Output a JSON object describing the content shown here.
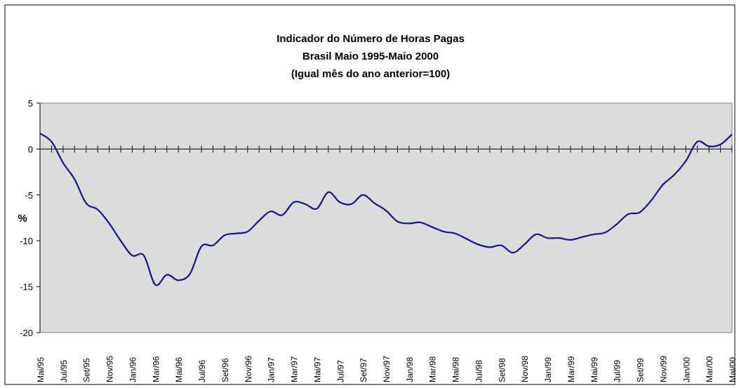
{
  "chart_data": {
    "type": "line",
    "title_lines": [
      "Indicador do Número de Horas Pagas",
      "Brasil Maio 1995-Maio 2000",
      "(Igual mês do ano anterior=100)"
    ],
    "ylabel": "%",
    "categories": [
      "Mai/95",
      null,
      "Jul/95",
      null,
      "Set/95",
      null,
      "Nov/95",
      null,
      "Jan/96",
      null,
      "Mar/96",
      null,
      "Mai/96",
      null,
      "Jul/96",
      null,
      "Set/96",
      null,
      "Nov/96",
      null,
      "Jan/97",
      null,
      "Mar/97",
      null,
      "Mai/97",
      null,
      "Jul/97",
      null,
      "Set/97",
      null,
      "Nov/97",
      null,
      "Jan/98",
      null,
      "Mar/98",
      null,
      "Mai/98",
      null,
      "Jul/98",
      null,
      "Set/98",
      null,
      "Nov/98",
      null,
      "Jan/99",
      null,
      "Mar/99",
      null,
      "Mai/99",
      null,
      "Jul/99",
      null,
      "Set/99",
      null,
      "Nov/99",
      null,
      "Jan/00",
      null,
      "Mar/00",
      null,
      "Mai/00"
    ],
    "values": [
      1.7,
      0.8,
      -1.5,
      -3.3,
      -5.9,
      -6.6,
      -8.1,
      -10.0,
      -11.6,
      -11.6,
      -14.8,
      -13.7,
      -14.3,
      -13.6,
      -10.6,
      -10.5,
      -9.4,
      -9.2,
      -9.0,
      -7.8,
      -6.8,
      -7.2,
      -5.8,
      -6.0,
      -6.5,
      -4.7,
      -5.8,
      -6.0,
      -5.0,
      -5.9,
      -6.7,
      -7.9,
      -8.1,
      -8.0,
      -8.5,
      -9.0,
      -9.2,
      -9.8,
      -10.4,
      -10.7,
      -10.5,
      -11.3,
      -10.4,
      -9.3,
      -9.7,
      -9.7,
      -9.9,
      -9.6,
      -9.3,
      -9.1,
      -8.2,
      -7.1,
      -6.9,
      -5.6,
      -3.9,
      -2.8,
      -1.3,
      0.8,
      0.3,
      0.5,
      1.6
    ],
    "color": "#14148c",
    "ylim": [
      -20,
      5
    ],
    "yticks": [
      -20,
      -15,
      -10,
      -5,
      0,
      5
    ],
    "grid": false
  }
}
